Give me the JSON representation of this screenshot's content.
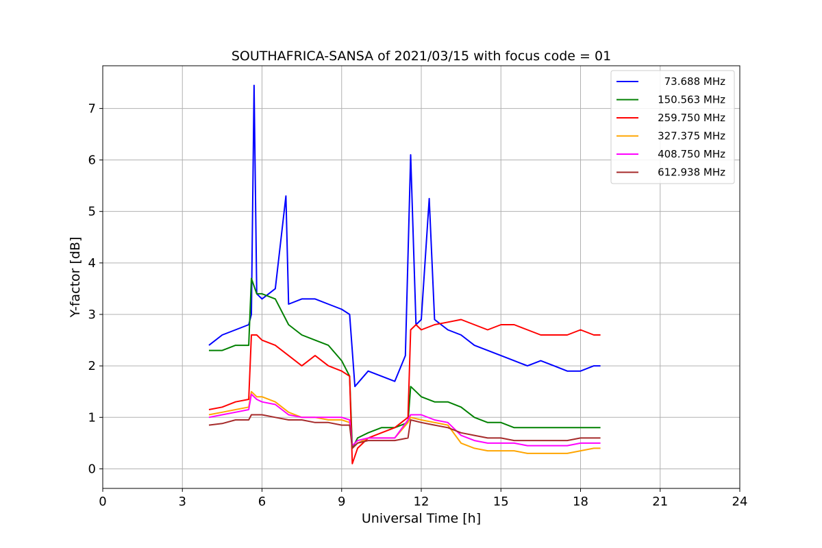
{
  "chart_data": {
    "type": "line",
    "title": "SOUTHAFRICA-SANSA of 2021/03/15 with focus code = 01",
    "xlabel": "Universal Time [h]",
    "ylabel": "Y-factor [dB]",
    "xlim": [
      0,
      24
    ],
    "ylim": [
      -0.38,
      7.83
    ],
    "xticks": [
      0,
      3,
      6,
      9,
      12,
      15,
      18,
      21,
      24
    ],
    "yticks": [
      0,
      1,
      2,
      3,
      4,
      5,
      6,
      7
    ],
    "grid": true,
    "legend_position": "top-right",
    "series": [
      {
        "name": "73.688 MHz",
        "color": "#0000ff",
        "x": [
          4.0,
          4.5,
          5.0,
          5.5,
          5.6,
          5.7,
          5.8,
          6.0,
          6.5,
          6.9,
          7.0,
          7.5,
          8.0,
          8.5,
          9.0,
          9.3,
          9.5,
          10.0,
          10.5,
          11.0,
          11.4,
          11.6,
          11.8,
          12.0,
          12.3,
          12.5,
          13.0,
          13.5,
          14.0,
          14.5,
          15.0,
          15.5,
          16.0,
          16.5,
          17.0,
          17.5,
          18.0,
          18.5,
          18.75
        ],
        "y": [
          2.4,
          2.6,
          2.7,
          2.8,
          3.0,
          7.45,
          3.4,
          3.3,
          3.5,
          5.3,
          3.2,
          3.3,
          3.3,
          3.2,
          3.1,
          3.0,
          1.6,
          1.9,
          1.8,
          1.7,
          2.2,
          6.1,
          2.8,
          2.9,
          5.25,
          2.9,
          2.7,
          2.6,
          2.4,
          2.3,
          2.2,
          2.1,
          2.0,
          2.1,
          2.0,
          1.9,
          1.9,
          2.0,
          2.0
        ]
      },
      {
        "name": "150.563 MHz",
        "color": "#008000",
        "x": [
          4.0,
          4.5,
          5.0,
          5.5,
          5.6,
          5.8,
          6.0,
          6.5,
          7.0,
          7.5,
          8.0,
          8.5,
          9.0,
          9.3,
          9.4,
          9.6,
          10.0,
          10.5,
          11.0,
          11.5,
          11.6,
          11.8,
          12.0,
          12.5,
          13.0,
          13.5,
          14.0,
          14.5,
          15.0,
          15.5,
          16.0,
          16.5,
          17.0,
          17.5,
          18.0,
          18.5,
          18.75
        ],
        "y": [
          2.3,
          2.3,
          2.4,
          2.4,
          3.7,
          3.4,
          3.4,
          3.3,
          2.8,
          2.6,
          2.5,
          2.4,
          2.1,
          1.8,
          0.4,
          0.6,
          0.7,
          0.8,
          0.8,
          0.9,
          1.6,
          1.5,
          1.4,
          1.3,
          1.3,
          1.2,
          1.0,
          0.9,
          0.9,
          0.8,
          0.8,
          0.8,
          0.8,
          0.8,
          0.8,
          0.8,
          0.8
        ]
      },
      {
        "name": "259.750 MHz",
        "color": "#ff0000",
        "x": [
          4.0,
          4.5,
          5.0,
          5.5,
          5.6,
          5.8,
          6.0,
          6.5,
          7.0,
          7.5,
          8.0,
          8.5,
          9.0,
          9.3,
          9.4,
          9.6,
          10.0,
          10.5,
          11.0,
          11.5,
          11.6,
          11.8,
          12.0,
          12.5,
          13.0,
          13.5,
          14.0,
          14.5,
          15.0,
          15.5,
          16.0,
          16.5,
          17.0,
          17.5,
          18.0,
          18.5,
          18.75
        ],
        "y": [
          1.15,
          1.2,
          1.3,
          1.35,
          2.6,
          2.6,
          2.5,
          2.4,
          2.2,
          2.0,
          2.2,
          2.0,
          1.9,
          1.8,
          0.1,
          0.4,
          0.6,
          0.7,
          0.8,
          1.0,
          2.7,
          2.8,
          2.7,
          2.8,
          2.85,
          2.9,
          2.8,
          2.7,
          2.8,
          2.8,
          2.7,
          2.6,
          2.6,
          2.6,
          2.7,
          2.6,
          2.6
        ]
      },
      {
        "name": "327.375 MHz",
        "color": "#ffa500",
        "x": [
          4.0,
          4.5,
          5.0,
          5.5,
          5.6,
          5.8,
          6.0,
          6.5,
          7.0,
          7.5,
          8.0,
          8.5,
          9.0,
          9.3,
          9.4,
          9.6,
          10.0,
          10.5,
          11.0,
          11.5,
          11.6,
          12.0,
          12.5,
          13.0,
          13.5,
          14.0,
          14.5,
          15.0,
          15.5,
          16.0,
          16.5,
          17.0,
          17.5,
          18.0,
          18.5,
          18.75
        ],
        "y": [
          1.05,
          1.1,
          1.15,
          1.2,
          1.5,
          1.4,
          1.4,
          1.3,
          1.1,
          1.0,
          1.0,
          0.95,
          0.95,
          0.9,
          0.4,
          0.5,
          0.6,
          0.6,
          0.6,
          0.9,
          1.0,
          0.95,
          0.9,
          0.85,
          0.5,
          0.4,
          0.35,
          0.35,
          0.35,
          0.3,
          0.3,
          0.3,
          0.3,
          0.35,
          0.4,
          0.4
        ]
      },
      {
        "name": "408.750 MHz",
        "color": "#ff00ff",
        "x": [
          4.0,
          4.5,
          5.0,
          5.5,
          5.6,
          5.8,
          6.0,
          6.5,
          7.0,
          7.5,
          8.0,
          8.5,
          9.0,
          9.3,
          9.4,
          9.6,
          10.0,
          10.5,
          11.0,
          11.5,
          11.6,
          12.0,
          12.5,
          13.0,
          13.5,
          14.0,
          14.5,
          15.0,
          15.5,
          16.0,
          16.5,
          17.0,
          17.5,
          18.0,
          18.5,
          18.75
        ],
        "y": [
          1.0,
          1.05,
          1.1,
          1.15,
          1.45,
          1.35,
          1.3,
          1.25,
          1.05,
          1.0,
          1.0,
          1.0,
          1.0,
          0.95,
          0.45,
          0.55,
          0.6,
          0.6,
          0.6,
          0.95,
          1.05,
          1.05,
          0.95,
          0.9,
          0.65,
          0.55,
          0.5,
          0.5,
          0.5,
          0.45,
          0.45,
          0.45,
          0.45,
          0.5,
          0.5,
          0.5
        ]
      },
      {
        "name": "612.938 MHz",
        "color": "#a52a2a",
        "x": [
          4.0,
          4.5,
          5.0,
          5.5,
          5.6,
          5.8,
          6.0,
          6.5,
          7.0,
          7.5,
          8.0,
          8.5,
          9.0,
          9.3,
          9.4,
          9.6,
          10.0,
          10.5,
          11.0,
          11.5,
          11.6,
          12.0,
          12.5,
          13.0,
          13.5,
          14.0,
          14.5,
          15.0,
          15.5,
          16.0,
          16.5,
          17.0,
          17.5,
          18.0,
          18.5,
          18.75
        ],
        "y": [
          0.85,
          0.88,
          0.95,
          0.95,
          1.05,
          1.05,
          1.05,
          1.0,
          0.95,
          0.95,
          0.9,
          0.9,
          0.85,
          0.85,
          0.4,
          0.5,
          0.55,
          0.55,
          0.55,
          0.6,
          0.95,
          0.9,
          0.85,
          0.8,
          0.7,
          0.65,
          0.6,
          0.6,
          0.55,
          0.55,
          0.55,
          0.55,
          0.55,
          0.6,
          0.6,
          0.6
        ]
      }
    ]
  }
}
